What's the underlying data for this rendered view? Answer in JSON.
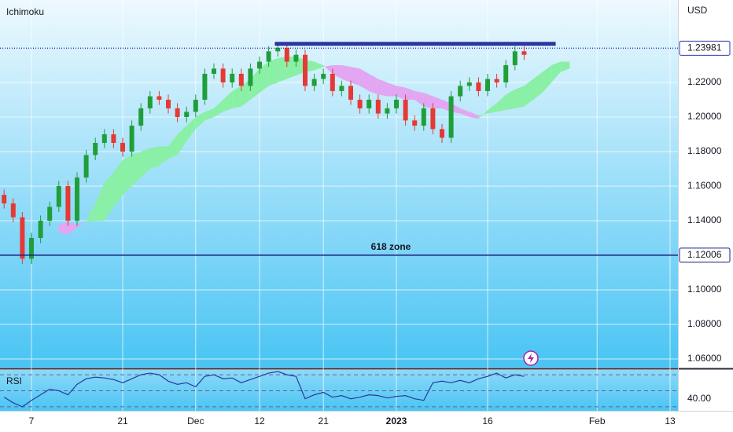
{
  "chart_data": {
    "type": "candlestick",
    "title": "Ichimoku",
    "currency": "USD",
    "categories": [
      null,
      null,
      null,
      "7",
      null,
      null,
      null,
      null,
      null,
      null,
      null,
      null,
      null,
      "21",
      null,
      null,
      null,
      null,
      null,
      null,
      null,
      "Dec",
      null,
      null,
      null,
      null,
      null,
      null,
      "12",
      null,
      null,
      null,
      null,
      null,
      null,
      "21",
      null,
      null,
      null,
      null,
      null,
      null,
      null,
      "2023",
      null,
      null,
      null,
      null,
      null,
      null,
      null,
      null,
      null,
      "16",
      null,
      null,
      null,
      null,
      null,
      null,
      null,
      null,
      null,
      null,
      null,
      "Feb",
      null,
      null,
      null,
      null,
      null,
      null,
      null,
      "13"
    ],
    "open": [
      1.155,
      1.15,
      1.142,
      1.118,
      1.13,
      1.14,
      1.148,
      1.16,
      1.14,
      1.165,
      1.178,
      1.185,
      1.19,
      1.185,
      1.18,
      1.195,
      1.205,
      1.212,
      1.21,
      1.205,
      1.2,
      1.203,
      1.21,
      1.225,
      1.228,
      1.22,
      1.225,
      1.218,
      1.228,
      1.232,
      1.238,
      1.24,
      1.232,
      1.236,
      1.218,
      1.222,
      1.225,
      1.215,
      1.218,
      1.21,
      1.205,
      1.21,
      1.202,
      1.205,
      1.21,
      1.198,
      1.195,
      1.205,
      1.193,
      1.188,
      1.212,
      1.218,
      1.22,
      1.215,
      1.222,
      1.22,
      1.23,
      1.238,
      null,
      null,
      null,
      null,
      null,
      null,
      null,
      null,
      null,
      null,
      null,
      null,
      null,
      null,
      null,
      null
    ],
    "high": [
      1.158,
      1.153,
      1.145,
      1.133,
      1.143,
      1.151,
      1.163,
      1.163,
      1.168,
      1.181,
      1.188,
      1.193,
      1.193,
      1.188,
      1.198,
      1.208,
      1.215,
      1.215,
      1.213,
      1.208,
      1.206,
      1.213,
      1.228,
      1.231,
      1.231,
      1.228,
      1.228,
      1.231,
      1.235,
      1.241,
      1.243,
      1.243,
      1.239,
      1.239,
      1.225,
      1.228,
      1.228,
      1.221,
      1.221,
      1.213,
      1.213,
      1.213,
      1.208,
      1.213,
      1.213,
      1.201,
      1.208,
      1.208,
      1.196,
      1.215,
      1.221,
      1.223,
      1.223,
      1.225,
      1.225,
      1.233,
      1.241,
      1.241,
      null,
      null,
      null,
      null,
      null,
      null,
      null,
      null,
      null,
      null,
      null,
      null,
      null,
      null,
      null,
      null
    ],
    "low": [
      1.147,
      1.139,
      1.115,
      1.115,
      1.127,
      1.137,
      1.145,
      1.137,
      1.137,
      1.162,
      1.175,
      1.182,
      1.182,
      1.177,
      1.177,
      1.192,
      1.202,
      1.207,
      1.202,
      1.197,
      1.197,
      1.2,
      1.207,
      1.222,
      1.217,
      1.217,
      1.215,
      1.215,
      1.225,
      1.229,
      1.235,
      1.229,
      1.229,
      1.215,
      1.215,
      1.219,
      1.212,
      1.212,
      1.207,
      1.202,
      1.202,
      1.199,
      1.199,
      1.202,
      1.195,
      1.192,
      1.192,
      1.19,
      1.185,
      1.185,
      1.209,
      1.215,
      1.212,
      1.212,
      1.217,
      1.217,
      1.227,
      1.233,
      null,
      null,
      null,
      null,
      null,
      null,
      null,
      null,
      null,
      null,
      null,
      null,
      null,
      null,
      null,
      null
    ],
    "close": [
      1.15,
      1.142,
      1.118,
      1.13,
      1.14,
      1.148,
      1.16,
      1.14,
      1.165,
      1.178,
      1.185,
      1.19,
      1.185,
      1.18,
      1.195,
      1.205,
      1.212,
      1.21,
      1.205,
      1.2,
      1.203,
      1.21,
      1.225,
      1.228,
      1.22,
      1.225,
      1.218,
      1.228,
      1.232,
      1.238,
      1.24,
      1.232,
      1.236,
      1.218,
      1.222,
      1.225,
      1.215,
      1.218,
      1.21,
      1.205,
      1.21,
      1.202,
      1.205,
      1.21,
      1.198,
      1.195,
      1.205,
      1.193,
      1.188,
      1.212,
      1.218,
      1.22,
      1.215,
      1.222,
      1.22,
      1.23,
      1.238,
      1.236,
      null,
      null,
      null,
      null,
      null,
      null,
      null,
      null,
      null,
      null,
      null,
      null,
      null,
      null,
      null,
      null
    ],
    "up_color": "#1f9e3a",
    "down_color": "#e53935",
    "ylim": [
      1.055,
      1.2677
    ],
    "yticks": [
      {
        "value": 1.06,
        "label": "1.06000"
      },
      {
        "value": 1.08,
        "label": "1.08000"
      },
      {
        "value": 1.1,
        "label": "1.10000"
      },
      {
        "value": 1.12,
        "label": "1.12000"
      },
      {
        "value": 1.14,
        "label": "1.14000"
      },
      {
        "value": 1.16,
        "label": "1.16000"
      },
      {
        "value": 1.18,
        "label": "1.18000"
      },
      {
        "value": 1.2,
        "label": "1.20000"
      },
      {
        "value": 1.22,
        "label": "1.22000"
      }
    ],
    "grid": true,
    "cloud": {
      "span_a": [
        null,
        null,
        null,
        null,
        null,
        null,
        1.133,
        1.132,
        1.136,
        1.14,
        1.15,
        1.162,
        1.168,
        1.175,
        1.178,
        1.18,
        1.182,
        1.183,
        1.183,
        1.19,
        1.195,
        1.2,
        1.203,
        1.205,
        1.21,
        1.215,
        1.218,
        1.222,
        1.228,
        1.232,
        1.234,
        1.235,
        1.235,
        1.233,
        1.232,
        1.23,
        1.225,
        1.222,
        1.22,
        1.218,
        1.215,
        1.213,
        1.212,
        1.212,
        1.21,
        1.21,
        1.206,
        1.205,
        1.205,
        1.203,
        1.202,
        1.2,
        1.199,
        1.204,
        1.208,
        1.213,
        1.216,
        1.218,
        1.222,
        1.226,
        1.23,
        1.232,
        1.232,
        null,
        null,
        null,
        null,
        null,
        null,
        null,
        null,
        null,
        null,
        null
      ],
      "span_b": [
        null,
        null,
        null,
        null,
        null,
        null,
        1.138,
        1.139,
        1.138,
        1.139,
        1.14,
        1.14,
        1.148,
        1.155,
        1.16,
        1.165,
        1.17,
        1.172,
        1.176,
        1.178,
        1.186,
        1.193,
        1.198,
        1.2,
        1.203,
        1.205,
        1.206,
        1.21,
        1.214,
        1.218,
        1.22,
        1.222,
        1.224,
        1.226,
        1.227,
        1.229,
        1.23,
        1.23,
        1.229,
        1.228,
        1.225,
        1.222,
        1.22,
        1.218,
        1.217,
        1.215,
        1.214,
        1.212,
        1.21,
        1.208,
        1.205,
        1.203,
        1.201,
        1.202,
        1.203,
        1.204,
        1.205,
        1.206,
        1.21,
        1.214,
        1.22,
        1.226,
        1.228,
        null,
        null,
        null,
        null,
        null,
        null,
        null,
        null,
        null,
        null,
        null
      ],
      "bull_color": "#8af0a6",
      "bear_color": "#e2a6f2"
    },
    "zone": {
      "low": 1.2415,
      "high": 1.2432,
      "color": "#2e35b0"
    },
    "price_lines": [
      {
        "value": 1.23981,
        "color": "#2e35b0",
        "style": "dotted"
      },
      {
        "value": 1.12006,
        "color": "#1a237e",
        "style": "solid",
        "text": "618 zone"
      }
    ],
    "rsi": {
      "title": "RSI",
      "values": [
        42,
        35,
        30,
        38,
        45,
        52,
        50,
        45,
        58,
        65,
        67,
        66,
        64,
        60,
        65,
        70,
        72,
        70,
        62,
        58,
        60,
        55,
        68,
        70,
        65,
        66,
        60,
        64,
        68,
        72,
        74,
        70,
        68,
        40,
        45,
        48,
        42,
        44,
        40,
        42,
        45,
        44,
        41,
        43,
        44,
        40,
        38,
        60,
        62,
        60,
        63,
        60,
        65,
        68,
        72,
        66,
        70,
        68,
        null,
        null,
        null,
        null,
        null,
        null,
        null,
        null,
        null,
        null,
        null,
        null,
        null,
        null,
        null,
        null
      ],
      "ylim": [
        25,
        76
      ],
      "yticks": [
        {
          "value": 40,
          "label": "40.00"
        }
      ],
      "levels": [
        30,
        50,
        70
      ],
      "color": "#2a3a9e"
    }
  }
}
